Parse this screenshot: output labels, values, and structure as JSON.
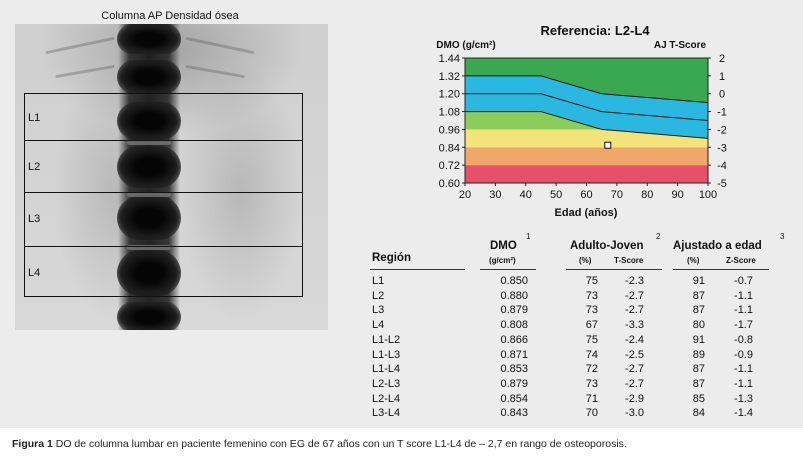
{
  "scan": {
    "title": "Columna AP Densidad ósea",
    "regions": [
      "L1",
      "L2",
      "L3",
      "L4"
    ]
  },
  "chart": {
    "title": "Referencia: L2-L4",
    "left_axis_label": "DMO (g/cm²)",
    "right_axis_label": "AJ T-Score",
    "x_label": "Edad (años)"
  },
  "chart_data": {
    "type": "area",
    "title": "Referencia: L2-L4",
    "xlabel": "Edad (años)",
    "ylabel": "DMO (g/cm²)",
    "y2label": "AJ T-Score",
    "xlim": [
      20,
      100
    ],
    "ylim": [
      0.6,
      1.44
    ],
    "y2lim": [
      -5,
      2
    ],
    "x_ticks": [
      "20",
      "30",
      "40",
      "50",
      "60",
      "70",
      "80",
      "90",
      "100"
    ],
    "y_ticks": [
      "0.60",
      "0.72",
      "0.84",
      "0.96",
      "1.08",
      "1.20",
      "1.32",
      "1.44"
    ],
    "y2_ticks": [
      "-5",
      "-4",
      "-3",
      "-2",
      "-1",
      "0",
      "1",
      "2"
    ],
    "bands": [
      {
        "band": "T < -3.5",
        "color": "#e8506a",
        "y_top": 0.72
      },
      {
        "band": "-3.5 to -2.5",
        "color": "#f0a86a",
        "y_top": 0.84
      },
      {
        "band": "-2.5 to -1.5",
        "color": "#f2e47a",
        "y_top": 0.96
      },
      {
        "band": "-1.5 to -1",
        "color": "#8ccc5a",
        "y_top": 1.08
      },
      {
        "band": "normal",
        "color": "#3aa850",
        "y_top": 1.44
      }
    ],
    "reference_band": {
      "color": "#2bb8e0",
      "x": [
        20,
        45,
        65,
        100
      ],
      "upper": [
        1.32,
        1.32,
        1.2,
        1.14
      ],
      "mean": [
        1.2,
        1.2,
        1.08,
        1.02
      ],
      "lower": [
        1.08,
        1.08,
        0.96,
        0.9
      ]
    },
    "patient_point": {
      "x": 67,
      "y": 0.854
    }
  },
  "table": {
    "headers": {
      "region": "Región",
      "bmd": "DMO",
      "bmd_unit": "(g/cm²)",
      "bmd_sup": "1",
      "adult": "Adulto-Joven",
      "adult_sup": "2",
      "age": "Ajustado a edad",
      "age_sup": "3",
      "pct": "(%)",
      "tscore": "T-Score",
      "zscore": "Z-Score"
    },
    "rows": [
      {
        "region": "L1",
        "bmd": "0.850",
        "pct_yа": "75",
        "t": "-2.3",
        "pct_age": "91",
        "z": "-0.7"
      },
      {
        "region": "L2",
        "bmd": "0.880",
        "pct_yа": "73",
        "t": "-2.7",
        "pct_age": "87",
        "z": "-1.1"
      },
      {
        "region": "L3",
        "bmd": "0.879",
        "pct_yа": "73",
        "t": "-2.7",
        "pct_age": "87",
        "z": "-1.1"
      },
      {
        "region": "L4",
        "bmd": "0.808",
        "pct_yа": "67",
        "t": "-3.3",
        "pct_age": "80",
        "z": "-1.7"
      },
      {
        "region": "L1-L2",
        "bmd": "0.866",
        "pct_yа": "75",
        "t": "-2.4",
        "pct_age": "91",
        "z": "-0.8"
      },
      {
        "region": "L1-L3",
        "bmd": "0.871",
        "pct_yа": "74",
        "t": "-2.5",
        "pct_age": "89",
        "z": "-0.9"
      },
      {
        "region": "L1-L4",
        "bmd": "0.853",
        "pct_yа": "72",
        "t": "-2.7",
        "pct_age": "87",
        "z": "-1.1"
      },
      {
        "region": "L2-L3",
        "bmd": "0.879",
        "pct_yа": "73",
        "t": "-2.7",
        "pct_age": "87",
        "z": "-1.1"
      },
      {
        "region": "L2-L4",
        "bmd": "0.854",
        "pct_yа": "71",
        "t": "-2.9",
        "pct_age": "85",
        "z": "-1.3"
      },
      {
        "region": "L3-L4",
        "bmd": "0.843",
        "pct_yа": "70",
        "t": "-3.0",
        "pct_age": "84",
        "z": "-1.4"
      }
    ]
  },
  "caption": {
    "label": "Figura 1",
    "text": " DO de columna lumbar en paciente femenino con EG de 67 años con un T score L1-L4 de – 2,7 en rango de osteoporosis."
  }
}
